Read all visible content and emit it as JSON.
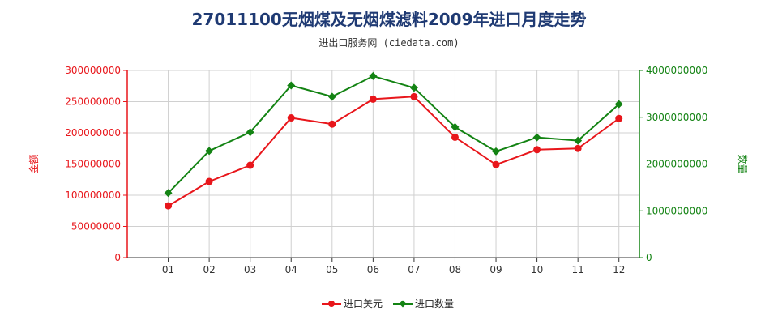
{
  "title": "27011100无烟煤及无烟煤滤料2009年进口月度走势",
  "subtitle": "进出口服务网 (ciedata.com)",
  "chart_data": {
    "type": "line",
    "categories": [
      "01",
      "02",
      "03",
      "04",
      "05",
      "06",
      "07",
      "08",
      "09",
      "10",
      "11",
      "12"
    ],
    "series": [
      {
        "name": "进口美元",
        "axis": "left",
        "color": "#e8161b",
        "values": [
          83000000,
          122000000,
          148000000,
          224000000,
          214000000,
          254000000,
          258000000,
          193000000,
          149000000,
          173000000,
          175000000,
          223000000
        ]
      },
      {
        "name": "进口数量",
        "axis": "right",
        "color": "#138313",
        "values": [
          1380000000,
          2280000000,
          2680000000,
          3680000000,
          3440000000,
          3880000000,
          3630000000,
          2790000000,
          2270000000,
          2570000000,
          2500000000,
          3280000000
        ]
      }
    ],
    "y_left": {
      "label": "金额",
      "color": "#e8161b",
      "range": [
        0,
        300000000
      ],
      "ticks": [
        "0",
        "50000000",
        "100000000",
        "150000000",
        "200000000",
        "250000000",
        "300000000"
      ]
    },
    "y_right": {
      "label": "数量",
      "color": "#138313",
      "range": [
        0,
        4000000000
      ],
      "ticks": [
        "0",
        "1000000000",
        "2000000000",
        "3000000000",
        "4000000000"
      ]
    },
    "grid": true,
    "legend": "bottom-center"
  }
}
